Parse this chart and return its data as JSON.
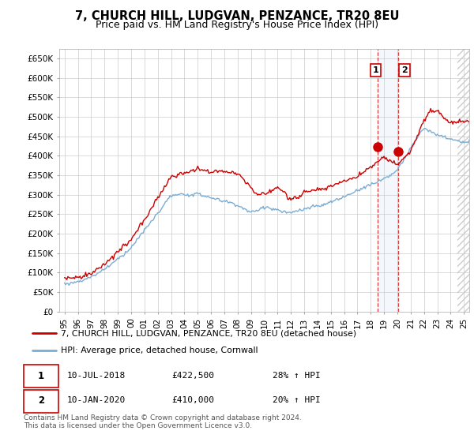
{
  "title": "7, CHURCH HILL, LUDGVAN, PENZANCE, TR20 8EU",
  "subtitle": "Price paid vs. HM Land Registry's House Price Index (HPI)",
  "title_fontsize": 10.5,
  "subtitle_fontsize": 9,
  "ylabel_ticks": [
    "£0",
    "£50K",
    "£100K",
    "£150K",
    "£200K",
    "£250K",
    "£300K",
    "£350K",
    "£400K",
    "£450K",
    "£500K",
    "£550K",
    "£600K",
    "£650K"
  ],
  "ytick_values": [
    0,
    50000,
    100000,
    150000,
    200000,
    250000,
    300000,
    350000,
    400000,
    450000,
    500000,
    550000,
    600000,
    650000
  ],
  "ylim": [
    0,
    675000
  ],
  "xlim_start": 1994.6,
  "xlim_end": 2025.4,
  "red_line_color": "#cc0000",
  "blue_line_color": "#7aadd4",
  "marker_color": "#cc0000",
  "sale1_x": 2018.53,
  "sale1_y": 422500,
  "sale2_x": 2020.03,
  "sale2_y": 410000,
  "legend_line1": "7, CHURCH HILL, LUDGVAN, PENZANCE, TR20 8EU (detached house)",
  "legend_line2": "HPI: Average price, detached house, Cornwall",
  "table_row1": [
    "1",
    "10-JUL-2018",
    "£422,500",
    "28% ↑ HPI"
  ],
  "table_row2": [
    "2",
    "10-JAN-2020",
    "£410,000",
    "20% ↑ HPI"
  ],
  "footer": "Contains HM Land Registry data © Crown copyright and database right 2024.\nThis data is licensed under the Open Government Licence v3.0.",
  "background_color": "#ffffff",
  "grid_color": "#cccccc",
  "hatch_start": 2024.5,
  "vline_fill_alpha": 0.12
}
